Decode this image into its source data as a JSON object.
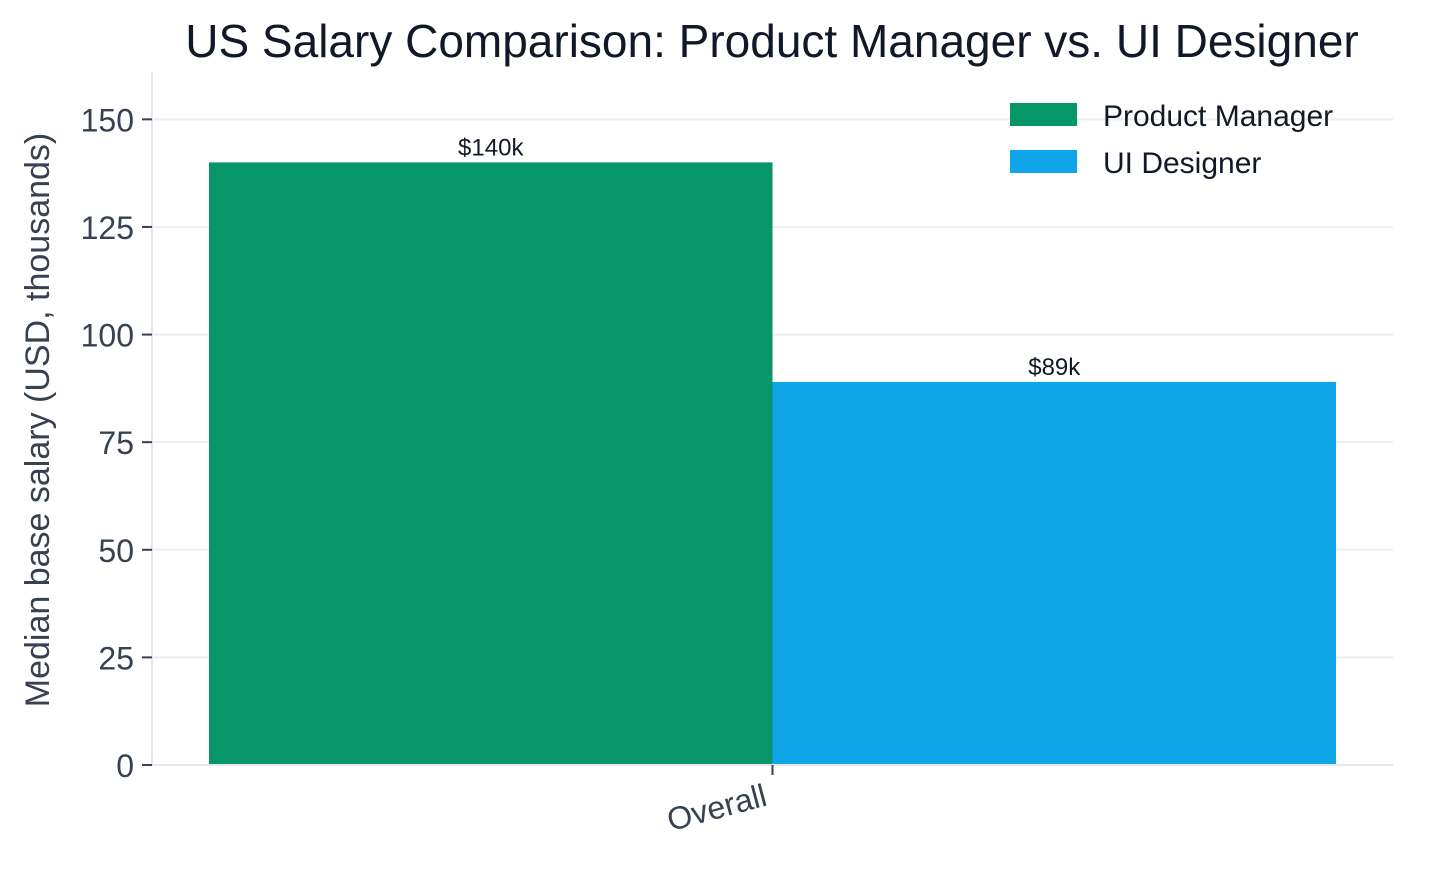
{
  "chart_data": {
    "type": "bar",
    "title": "US Salary Comparison: Product Manager vs. UI Designer",
    "xlabel": "",
    "ylabel": "Median base salary (USD, thousands)",
    "categories": [
      "Overall"
    ],
    "series": [
      {
        "name": "Product Manager",
        "values": [
          140
        ],
        "color": "#069668",
        "labels": [
          "$140k"
        ]
      },
      {
        "name": "UI Designer",
        "values": [
          89
        ],
        "color": "#10a5e8",
        "labels": [
          "$89k"
        ]
      }
    ],
    "ylim": [
      0,
      161
    ],
    "yticks": [
      0,
      25,
      50,
      75,
      100,
      125,
      150
    ],
    "grid": true,
    "legend_position": "top-right"
  }
}
